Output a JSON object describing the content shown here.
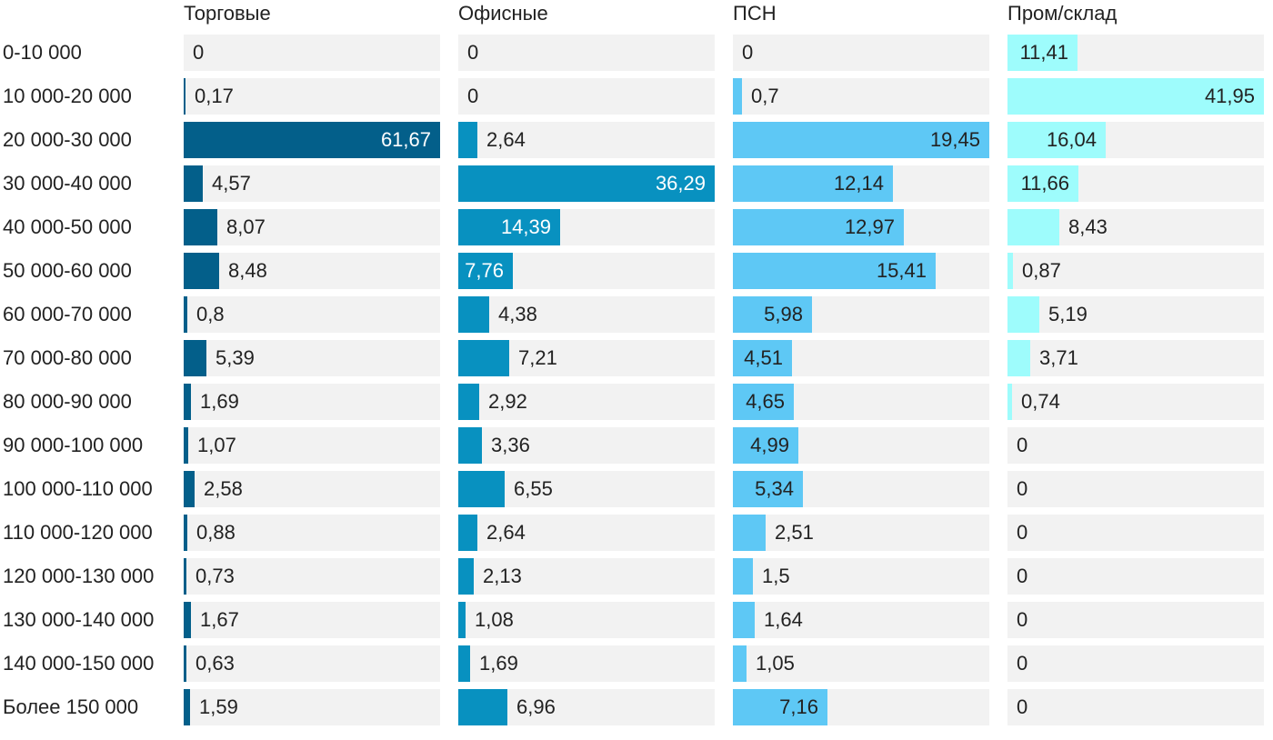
{
  "chart_data": {
    "type": "bar",
    "orientation": "horizontal",
    "layout": "small-multiples",
    "categories": [
      "0-10 000",
      "10 000-20 000",
      "20 000-30 000",
      "30 000-40 000",
      "40 000-50 000",
      "50 000-60 000",
      "60 000-70 000",
      "70 000-80 000",
      "80 000-90 000",
      "90 000-100 000",
      "100 000-110 000",
      "110 000-120 000",
      "120 000-130 000",
      "130 000-140 000",
      "140 000-150 000",
      "Более 150 000"
    ],
    "series": [
      {
        "name": "Торговые",
        "color": "#035f8a",
        "label_inside_color": "#ffffff",
        "values": [
          0,
          0.17,
          61.67,
          4.57,
          8.07,
          8.48,
          0.8,
          5.39,
          1.69,
          1.07,
          2.58,
          0.88,
          0.73,
          1.67,
          0.63,
          1.59
        ],
        "labels": [
          "0",
          "0,17",
          "61,67",
          "4,57",
          "8,07",
          "8,48",
          "0,8",
          "5,39",
          "1,69",
          "1,07",
          "2,58",
          "0,88",
          "0,73",
          "1,67",
          "0,63",
          "1,59"
        ]
      },
      {
        "name": "Офисные",
        "color": "#0891c0",
        "label_inside_color": "#ffffff",
        "values": [
          0,
          0,
          2.64,
          36.29,
          14.39,
          7.76,
          4.38,
          7.21,
          2.92,
          3.36,
          6.55,
          2.64,
          2.13,
          1.08,
          1.69,
          6.96
        ],
        "labels": [
          "0",
          "0",
          "2,64",
          "36,29",
          "14,39",
          "7,76",
          "4,38",
          "7,21",
          "2,92",
          "3,36",
          "6,55",
          "2,64",
          "2,13",
          "1,08",
          "1,69",
          "6,96"
        ]
      },
      {
        "name": "ПСН",
        "color": "#5ec8f5",
        "label_inside_color": "#222222",
        "values": [
          0,
          0.7,
          19.45,
          12.14,
          12.97,
          15.41,
          5.98,
          4.51,
          4.65,
          4.99,
          5.34,
          2.51,
          1.5,
          1.64,
          1.05,
          7.16
        ],
        "labels": [
          "0",
          "0,7",
          "19,45",
          "12,14",
          "12,97",
          "15,41",
          "5,98",
          "4,51",
          "4,65",
          "4,99",
          "5,34",
          "2,51",
          "1,5",
          "1,64",
          "1,05",
          "7,16"
        ]
      },
      {
        "name": "Пром/склад",
        "color": "#9efcfc",
        "label_inside_color": "#222222",
        "values": [
          11.41,
          41.95,
          16.04,
          11.66,
          8.43,
          0.87,
          5.19,
          3.71,
          0.74,
          0,
          0,
          0,
          0,
          0,
          0,
          0
        ],
        "labels": [
          "11,41",
          "41,95",
          "16,04",
          "11,66",
          "8,43",
          "0,87",
          "5,19",
          "3,71",
          "0,74",
          "0",
          "0",
          "0",
          "0",
          "0",
          "0",
          "0"
        ]
      }
    ],
    "title": "",
    "xlabel": "",
    "ylabel": ""
  }
}
